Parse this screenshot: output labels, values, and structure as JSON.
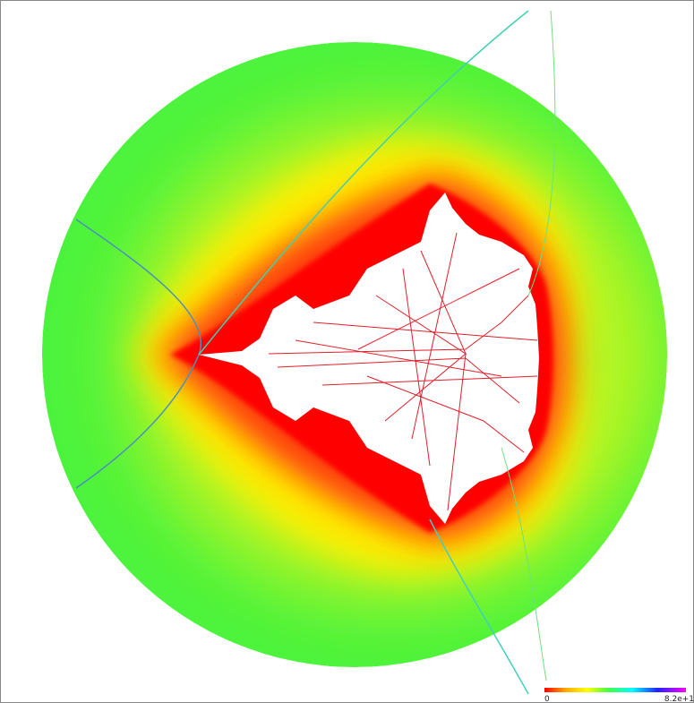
{
  "colorbar": {
    "min_label": "0",
    "max_label": "8.2e+1"
  }
}
